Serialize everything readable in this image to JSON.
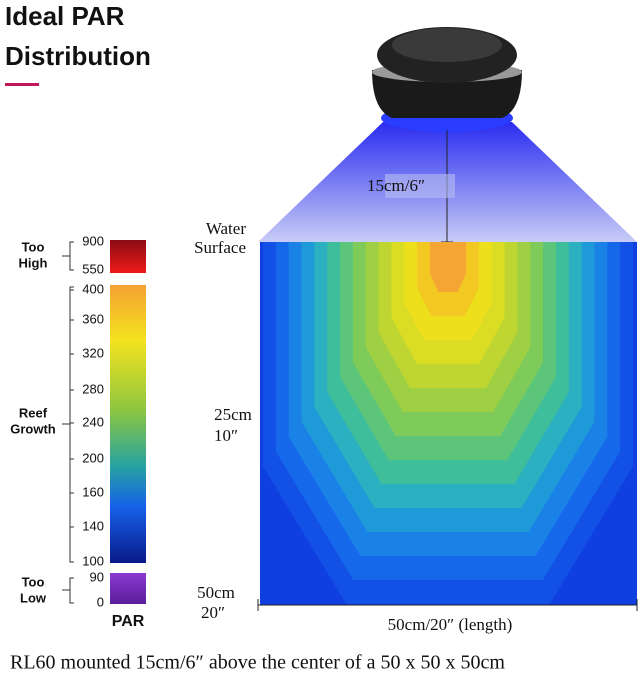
{
  "header": {
    "title": [
      "Ideal PAR",
      "Distribution"
    ]
  },
  "scale": {
    "too_high": {
      "label": [
        "Too",
        "High"
      ],
      "ticks": [
        "900",
        "550"
      ]
    },
    "reef_growth": {
      "label": [
        "Reef",
        "Growth"
      ],
      "ticks": [
        "400",
        "360",
        "320",
        "280",
        "240",
        "200",
        "160",
        "140",
        "100"
      ]
    },
    "too_low": {
      "label": [
        "Too",
        "Low"
      ],
      "ticks": [
        "90",
        "0"
      ]
    },
    "unit": "PAR"
  },
  "diagram": {
    "mount_height": "15cm/6″",
    "depth_labels": [
      [
        "Water",
        "Surface"
      ],
      [
        "25cm",
        "10″"
      ],
      [
        "50cm",
        "20″"
      ]
    ],
    "length_label": "50cm/20″ (length)"
  },
  "caption": "RL60 mounted 15cm/6″ above the center of a 50 x 50 x 50cm"
}
